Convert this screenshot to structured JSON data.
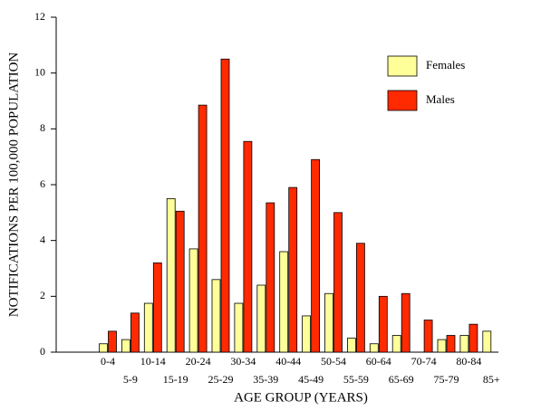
{
  "chart_data": {
    "type": "bar",
    "x_label": "AGE GROUP (YEARS)",
    "y_label": "NOTIFICATIONS PER 100,000 POPULATION",
    "categories": [
      "0-4",
      "5-9",
      "10-14",
      "15-19",
      "20-24",
      "25-29",
      "30-34",
      "35-39",
      "40-44",
      "45-49",
      "50-54",
      "55-59",
      "60-64",
      "65-69",
      "70-74",
      "75-79",
      "80-84",
      "85+"
    ],
    "series": [
      {
        "name": "Females",
        "color": "#ffff99",
        "values": [
          0.3,
          0.45,
          1.75,
          5.5,
          3.7,
          2.6,
          1.75,
          2.4,
          3.6,
          1.3,
          2.1,
          0.5,
          0.3,
          0.6,
          0,
          0.45,
          0.6,
          0.75
        ]
      },
      {
        "name": "Males",
        "color": "#ff2a00",
        "values": [
          0.75,
          1.4,
          3.2,
          5.05,
          8.85,
          10.5,
          7.55,
          5.35,
          5.9,
          6.9,
          5.0,
          3.9,
          2.0,
          2.1,
          1.15,
          0.6,
          1.0,
          0
        ]
      }
    ],
    "ylim": [
      0,
      12
    ],
    "yticks": [
      0,
      2,
      4,
      6,
      8,
      10,
      12
    ],
    "legend": "upper-right"
  }
}
